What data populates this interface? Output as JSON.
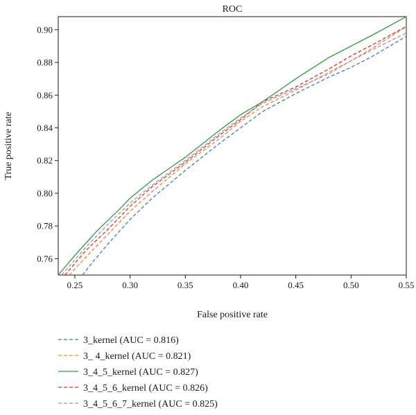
{
  "chart_data": {
    "type": "line",
    "title": "ROC",
    "xlabel": "False positive rate",
    "ylabel": "True positive rate",
    "xlim": [
      0.235,
      0.55
    ],
    "ylim": [
      0.75,
      0.908
    ],
    "xticks": [
      0.25,
      0.3,
      0.35,
      0.4,
      0.45,
      0.5,
      0.55
    ],
    "yticks": [
      0.76,
      0.78,
      0.8,
      0.82,
      0.84,
      0.86,
      0.88,
      0.9
    ],
    "xtick_labels": [
      "0.25",
      "0.30",
      "0.35",
      "0.40",
      "0.45",
      "0.50",
      "0.55"
    ],
    "ytick_labels": [
      "0.76",
      "0.78",
      "0.80",
      "0.82",
      "0.84",
      "0.86",
      "0.88",
      "0.90"
    ],
    "grid": false,
    "legend_position": "below",
    "series": [
      {
        "name": "3_kernel (AUC = 0.816)",
        "color": "#3b7dc4",
        "dash": "dashed",
        "x": [
          0.257,
          0.265,
          0.28,
          0.3,
          0.32,
          0.35,
          0.38,
          0.4,
          0.42,
          0.45,
          0.48,
          0.5,
          0.52,
          0.55
        ],
        "y": [
          0.75,
          0.757,
          0.769,
          0.784,
          0.797,
          0.814,
          0.83,
          0.84,
          0.85,
          0.861,
          0.871,
          0.877,
          0.884,
          0.896
        ]
      },
      {
        "name": "3_ 4_kernel (AUC = 0.821)",
        "color": "#f08a2a",
        "dash": "dashed",
        "x": [
          0.245,
          0.26,
          0.28,
          0.3,
          0.32,
          0.35,
          0.38,
          0.4,
          0.42,
          0.45,
          0.48,
          0.5,
          0.52,
          0.55
        ],
        "y": [
          0.75,
          0.761,
          0.775,
          0.789,
          0.801,
          0.818,
          0.833,
          0.844,
          0.853,
          0.863,
          0.874,
          0.881,
          0.889,
          0.902
        ]
      },
      {
        "name": "3_4_5_kernel (AUC = 0.827)",
        "color": "#2f9e3a",
        "dash": "solid",
        "x": [
          0.235,
          0.25,
          0.27,
          0.29,
          0.3,
          0.32,
          0.35,
          0.38,
          0.4,
          0.42,
          0.45,
          0.48,
          0.5,
          0.52,
          0.55
        ],
        "y": [
          0.75,
          0.762,
          0.777,
          0.79,
          0.797,
          0.808,
          0.822,
          0.838,
          0.848,
          0.856,
          0.87,
          0.883,
          0.89,
          0.897,
          0.908
        ]
      },
      {
        "name": "3_4_5_6_kernel (AUC = 0.826)",
        "color": "#d9332b",
        "dash": "dashed",
        "x": [
          0.241,
          0.26,
          0.28,
          0.3,
          0.32,
          0.35,
          0.38,
          0.4,
          0.42,
          0.45,
          0.48,
          0.5,
          0.52,
          0.55
        ],
        "y": [
          0.75,
          0.765,
          0.778,
          0.792,
          0.804,
          0.819,
          0.835,
          0.845,
          0.856,
          0.865,
          0.876,
          0.884,
          0.891,
          0.902
        ]
      },
      {
        "name": "3_4_5_6_7_kernel (AUC = 0.825)",
        "color": "#a98bc4",
        "dash": "dashed",
        "x": [
          0.238,
          0.26,
          0.28,
          0.3,
          0.32,
          0.35,
          0.38,
          0.4,
          0.42,
          0.45,
          0.48,
          0.5,
          0.52,
          0.55
        ],
        "y": [
          0.75,
          0.767,
          0.781,
          0.794,
          0.805,
          0.82,
          0.836,
          0.846,
          0.855,
          0.864,
          0.873,
          0.881,
          0.888,
          0.898
        ]
      }
    ]
  }
}
